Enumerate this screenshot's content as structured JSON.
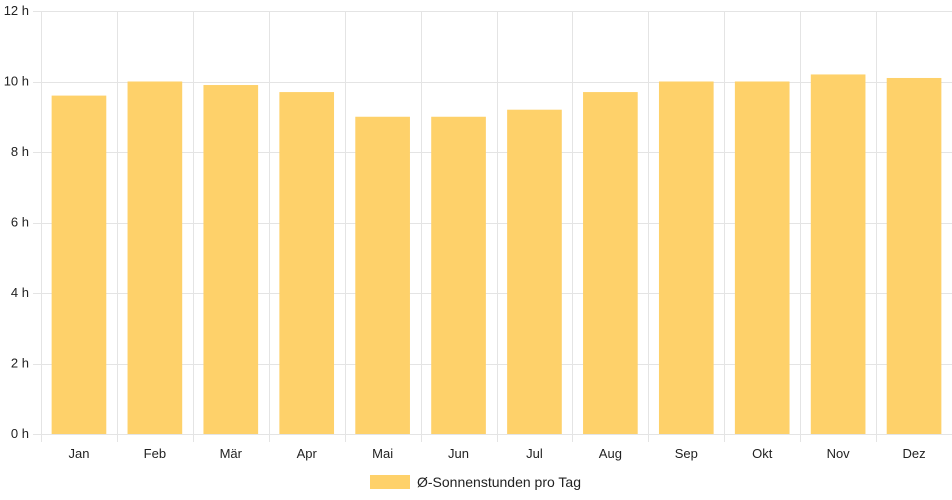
{
  "chart_data": {
    "type": "bar",
    "categories": [
      "Jan",
      "Feb",
      "Mär",
      "Apr",
      "Mai",
      "Jun",
      "Jul",
      "Aug",
      "Sep",
      "Okt",
      "Nov",
      "Dez"
    ],
    "series": [
      {
        "name": "Ø-Sonnenstunden pro Tag",
        "values": [
          9.6,
          10.0,
          9.9,
          9.7,
          9.0,
          9.0,
          9.2,
          9.7,
          10.0,
          10.0,
          10.2,
          10.1
        ]
      }
    ],
    "ylim": [
      0,
      12
    ],
    "yticks": [
      0,
      2,
      4,
      6,
      8,
      10,
      12
    ],
    "ytick_labels": [
      "0 h",
      "2 h",
      "4 h",
      "6 h",
      "8 h",
      "10 h",
      "12 h"
    ],
    "grid": true,
    "legend_position": "bottom",
    "colors": {
      "bar": "#fed16a",
      "grid": "#e4e4e4",
      "text": "#222222"
    }
  }
}
